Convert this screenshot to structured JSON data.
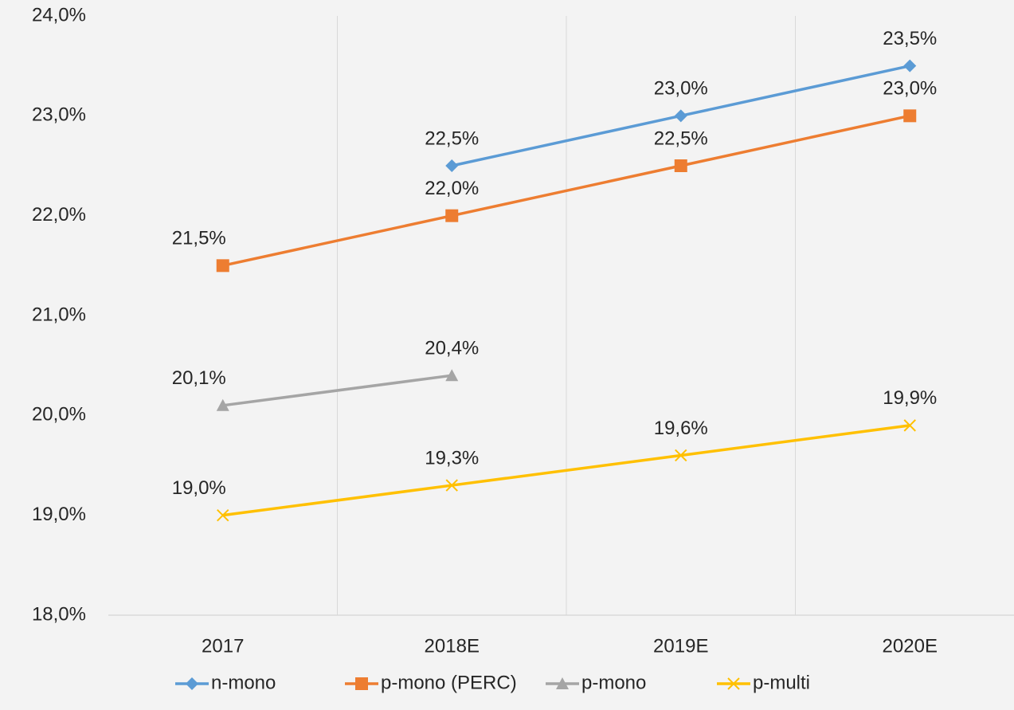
{
  "chart_data": {
    "type": "line",
    "categories": [
      "2017",
      "2018E",
      "2019E",
      "2020E"
    ],
    "series": [
      {
        "name": "n-mono",
        "color": "#5b9bd5",
        "marker": "diamond",
        "values": [
          null,
          22.5,
          23.0,
          23.5
        ],
        "value_labels": [
          null,
          "22,5%",
          "23,0%",
          "23,5%"
        ]
      },
      {
        "name": "p-mono (PERC)",
        "color": "#ed7d31",
        "marker": "square",
        "values": [
          21.5,
          22.0,
          22.5,
          23.0
        ],
        "value_labels": [
          "21,5%",
          "22,0%",
          "22,5%",
          "23,0%"
        ]
      },
      {
        "name": "p-mono",
        "color": "#a5a5a5",
        "marker": "triangle",
        "values": [
          20.1,
          20.4,
          null,
          null
        ],
        "value_labels": [
          "20,1%",
          "20,4%",
          null,
          null
        ]
      },
      {
        "name": "p-multi",
        "color": "#ffc000",
        "marker": "x",
        "values": [
          19.0,
          19.3,
          19.6,
          19.9
        ],
        "value_labels": [
          "19,0%",
          "19,3%",
          "19,6%",
          "19,9%"
        ]
      }
    ],
    "ylim": [
      18,
      24
    ],
    "yticks": [
      {
        "value": 18,
        "label": "18,0%"
      },
      {
        "value": 19,
        "label": "19,0%"
      },
      {
        "value": 20,
        "label": "20,0%"
      },
      {
        "value": 21,
        "label": "21,0%"
      },
      {
        "value": 22,
        "label": "22,0%"
      },
      {
        "value": 23,
        "label": "23,0%"
      },
      {
        "value": 24,
        "label": "24,0%"
      }
    ],
    "grid": true,
    "legend": "bottom"
  }
}
